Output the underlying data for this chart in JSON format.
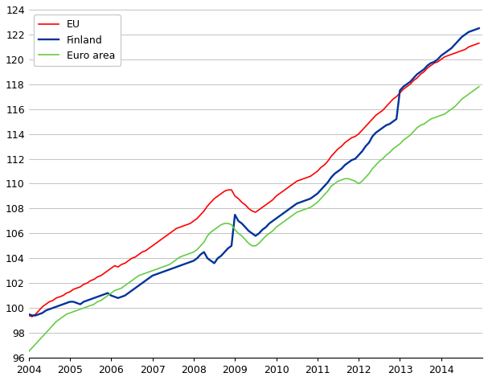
{
  "title": "",
  "ylabel": "",
  "xlabel": "",
  "ylim": [
    96,
    124
  ],
  "yticks": [
    96,
    98,
    100,
    102,
    104,
    106,
    108,
    110,
    112,
    114,
    116,
    118,
    120,
    122,
    124
  ],
  "xtick_labels": [
    "2004",
    "2005",
    "2006",
    "2007",
    "2008",
    "2009",
    "2010",
    "2011",
    "2012",
    "2013",
    "2014"
  ],
  "line_eu_color": "#FF0000",
  "line_finland_color": "#003399",
  "line_euroarea_color": "#66CC44",
  "line_width": 1.2,
  "legend_labels": [
    "EU",
    "Finland",
    "Euro area"
  ],
  "background_color": "#FFFFFF",
  "grid_color": "#AAAAAA",
  "eu": [
    99.4,
    99.3,
    99.5,
    99.8,
    100.1,
    100.3,
    100.5,
    100.6,
    100.8,
    100.9,
    101.0,
    101.2,
    101.3,
    101.5,
    101.6,
    101.7,
    101.9,
    102.0,
    102.2,
    102.3,
    102.5,
    102.6,
    102.8,
    103.0,
    103.2,
    103.4,
    103.3,
    103.5,
    103.6,
    103.8,
    104.0,
    104.1,
    104.3,
    104.5,
    104.6,
    104.8,
    105.0,
    105.2,
    105.4,
    105.6,
    105.8,
    106.0,
    106.2,
    106.4,
    106.5,
    106.6,
    106.7,
    106.8,
    107.0,
    107.2,
    107.5,
    107.8,
    108.2,
    108.5,
    108.8,
    109.0,
    109.2,
    109.4,
    109.5,
    109.5,
    109.0,
    108.8,
    108.5,
    108.3,
    108.0,
    107.8,
    107.7,
    107.9,
    108.1,
    108.3,
    108.5,
    108.7,
    109.0,
    109.2,
    109.4,
    109.6,
    109.8,
    110.0,
    110.2,
    110.3,
    110.4,
    110.5,
    110.6,
    110.8,
    111.0,
    111.3,
    111.5,
    111.8,
    112.2,
    112.5,
    112.8,
    113.0,
    113.3,
    113.5,
    113.7,
    113.8,
    114.0,
    114.3,
    114.6,
    114.9,
    115.2,
    115.5,
    115.7,
    115.9,
    116.2,
    116.5,
    116.8,
    117.0,
    117.3,
    117.6,
    117.8,
    118.0,
    118.3,
    118.5,
    118.8,
    119.0,
    119.3,
    119.5,
    119.7,
    119.8,
    120.0,
    120.2,
    120.3,
    120.4,
    120.5,
    120.6,
    120.7,
    120.8,
    121.0,
    121.1,
    121.2,
    121.3
  ],
  "finland": [
    99.5,
    99.4,
    99.4,
    99.5,
    99.6,
    99.8,
    99.9,
    100.0,
    100.1,
    100.2,
    100.3,
    100.4,
    100.5,
    100.5,
    100.4,
    100.3,
    100.5,
    100.6,
    100.7,
    100.8,
    100.9,
    101.0,
    101.1,
    101.2,
    101.0,
    100.9,
    100.8,
    100.9,
    101.0,
    101.2,
    101.4,
    101.6,
    101.8,
    102.0,
    102.2,
    102.4,
    102.6,
    102.7,
    102.8,
    102.9,
    103.0,
    103.1,
    103.2,
    103.3,
    103.4,
    103.5,
    103.6,
    103.7,
    103.8,
    104.0,
    104.3,
    104.5,
    104.0,
    103.8,
    103.6,
    104.0,
    104.2,
    104.5,
    104.8,
    105.0,
    107.5,
    107.0,
    106.8,
    106.5,
    106.2,
    106.0,
    105.8,
    106.0,
    106.3,
    106.5,
    106.8,
    107.0,
    107.2,
    107.4,
    107.6,
    107.8,
    108.0,
    108.2,
    108.4,
    108.5,
    108.6,
    108.7,
    108.8,
    109.0,
    109.2,
    109.5,
    109.8,
    110.1,
    110.5,
    110.8,
    111.0,
    111.2,
    111.5,
    111.7,
    111.9,
    112.0,
    112.3,
    112.6,
    113.0,
    113.3,
    113.8,
    114.1,
    114.3,
    114.5,
    114.7,
    114.8,
    115.0,
    115.2,
    117.5,
    117.8,
    118.0,
    118.2,
    118.5,
    118.8,
    119.0,
    119.2,
    119.5,
    119.7,
    119.8,
    120.0,
    120.3,
    120.5,
    120.7,
    120.9,
    121.2,
    121.5,
    121.8,
    122.0,
    122.2,
    122.3,
    122.4,
    122.5
  ],
  "euroarea": [
    96.5,
    96.8,
    97.1,
    97.4,
    97.7,
    98.0,
    98.3,
    98.6,
    98.9,
    99.1,
    99.3,
    99.5,
    99.6,
    99.7,
    99.8,
    99.9,
    100.0,
    100.1,
    100.2,
    100.3,
    100.5,
    100.6,
    100.8,
    101.0,
    101.2,
    101.4,
    101.5,
    101.6,
    101.8,
    102.0,
    102.2,
    102.4,
    102.6,
    102.7,
    102.8,
    102.9,
    103.0,
    103.1,
    103.2,
    103.3,
    103.4,
    103.5,
    103.7,
    103.9,
    104.1,
    104.2,
    104.3,
    104.4,
    104.5,
    104.7,
    105.0,
    105.3,
    105.8,
    106.1,
    106.3,
    106.5,
    106.7,
    106.8,
    106.8,
    106.7,
    106.3,
    106.0,
    105.8,
    105.5,
    105.2,
    105.0,
    105.0,
    105.2,
    105.5,
    105.8,
    106.0,
    106.2,
    106.5,
    106.7,
    106.9,
    107.1,
    107.3,
    107.5,
    107.7,
    107.8,
    107.9,
    108.0,
    108.1,
    108.3,
    108.5,
    108.8,
    109.1,
    109.4,
    109.8,
    110.0,
    110.2,
    110.3,
    110.4,
    110.4,
    110.3,
    110.2,
    110.0,
    110.2,
    110.5,
    110.8,
    111.2,
    111.5,
    111.8,
    112.0,
    112.3,
    112.5,
    112.8,
    113.0,
    113.2,
    113.5,
    113.7,
    113.9,
    114.2,
    114.5,
    114.7,
    114.8,
    115.0,
    115.2,
    115.3,
    115.4,
    115.5,
    115.6,
    115.8,
    116.0,
    116.2,
    116.5,
    116.8,
    117.0,
    117.2,
    117.4,
    117.6,
    117.8
  ]
}
